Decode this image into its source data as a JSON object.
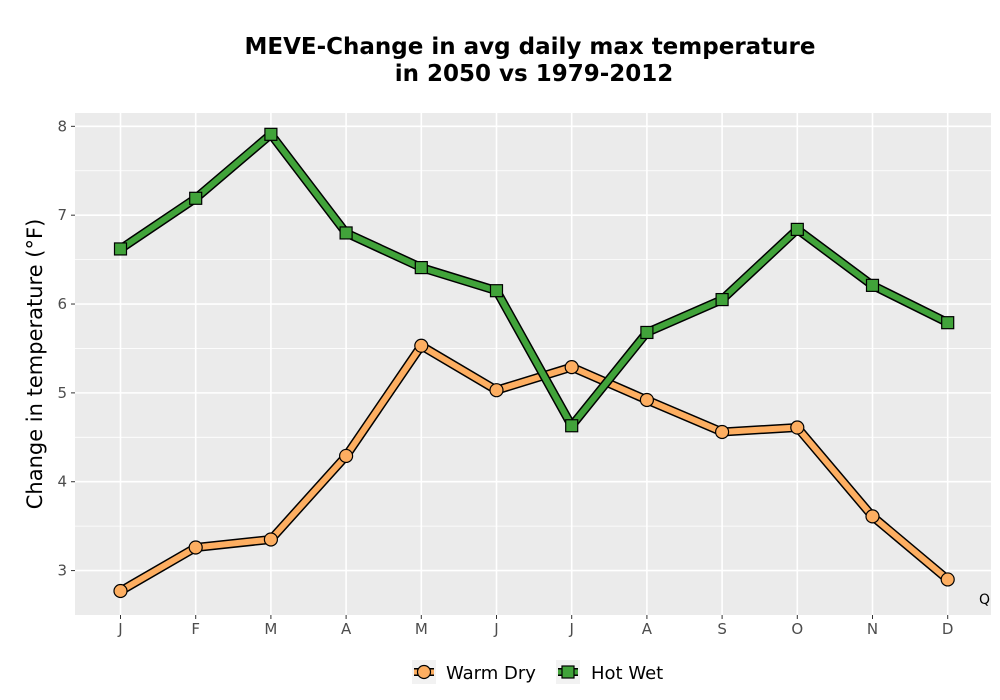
{
  "chart_data": {
    "type": "line",
    "title_line1": "MEVE-Change in avg daily max temperature",
    "title_line2": "in 2050 vs 1979-2012",
    "xlabel": "",
    "ylabel": "Change in temperature (°F)",
    "categories": [
      "J",
      "F",
      "M",
      "A",
      "M",
      "J",
      "J",
      "A",
      "S",
      "O",
      "N",
      "D"
    ],
    "ylim": [
      2.5,
      8.15
    ],
    "yticks": [
      3,
      4,
      5,
      6,
      7,
      8
    ],
    "grid": true,
    "legend_position": "bottom",
    "corner_note": "Q",
    "series": [
      {
        "name": "Warm Dry",
        "marker": "circle",
        "color": "#fdae61",
        "values": [
          2.77,
          3.26,
          3.35,
          4.29,
          5.53,
          5.03,
          5.29,
          4.92,
          4.56,
          4.61,
          3.61,
          2.9
        ]
      },
      {
        "name": "Hot Wet",
        "marker": "square",
        "color": "#41a33a",
        "values": [
          6.62,
          7.19,
          7.91,
          6.8,
          6.41,
          6.15,
          4.63,
          5.68,
          6.05,
          6.84,
          6.21,
          5.79
        ]
      }
    ]
  }
}
